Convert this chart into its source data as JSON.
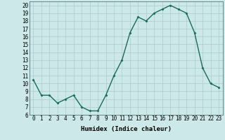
{
  "x": [
    0,
    1,
    2,
    3,
    4,
    5,
    6,
    7,
    8,
    9,
    10,
    11,
    12,
    13,
    14,
    15,
    16,
    17,
    18,
    19,
    20,
    21,
    22,
    23
  ],
  "y": [
    10.5,
    8.5,
    8.5,
    7.5,
    8.0,
    8.5,
    7.0,
    6.5,
    6.5,
    8.5,
    11.0,
    13.0,
    16.5,
    18.5,
    18.0,
    19.0,
    19.5,
    20.0,
    19.5,
    19.0,
    16.5,
    12.0,
    10.0,
    9.5
  ],
  "line_color": "#1a6b5a",
  "marker": "D",
  "marker_size": 1.5,
  "bg_color": "#cce8e8",
  "grid_color": "#aacccc",
  "xlabel": "Humidex (Indice chaleur)",
  "xlim": [
    -0.5,
    23.5
  ],
  "ylim": [
    6,
    20.5
  ],
  "yticks": [
    6,
    7,
    8,
    9,
    10,
    11,
    12,
    13,
    14,
    15,
    16,
    17,
    18,
    19,
    20
  ],
  "xticks": [
    0,
    1,
    2,
    3,
    4,
    5,
    6,
    7,
    8,
    9,
    10,
    11,
    12,
    13,
    14,
    15,
    16,
    17,
    18,
    19,
    20,
    21,
    22,
    23
  ],
  "xlabel_fontsize": 6.5,
  "tick_fontsize": 5.5,
  "linewidth": 1.0
}
